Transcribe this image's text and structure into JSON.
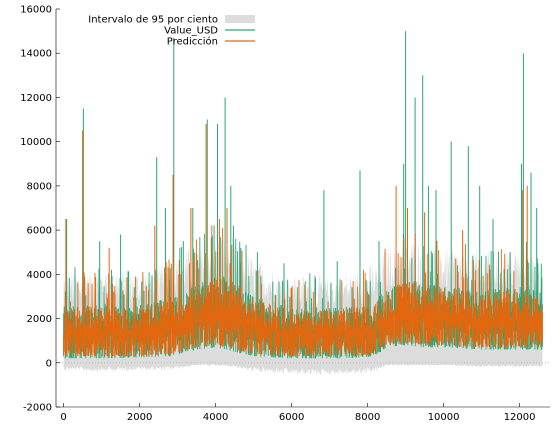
{
  "chart_data": {
    "type": "line",
    "title": "",
    "xlabel": "",
    "ylabel": "",
    "xlim": [
      -200,
      12800
    ],
    "ylim": [
      -2000,
      16000
    ],
    "x_ticks": [
      0,
      2000,
      4000,
      6000,
      8000,
      10000,
      12000
    ],
    "x_tick_labels": [
      "0",
      "2000",
      "4000",
      "6000",
      "8000",
      "10000",
      "12000"
    ],
    "y_ticks": [
      -2000,
      0,
      2000,
      4000,
      6000,
      8000,
      10000,
      12000,
      14000,
      16000
    ],
    "y_tick_labels": [
      "-2000",
      "0",
      "2000",
      "4000",
      "6000",
      "8000",
      "10000",
      "12000",
      "14000",
      "16000"
    ],
    "zero_line": true,
    "legend_position": "top-left",
    "n_points": 12600,
    "series": [
      {
        "name": "Intervalo de 95 por ciento",
        "kind": "band",
        "color": "#dcdcdc",
        "level_profile": {
          "x": [
            0,
            1000,
            2000,
            2800,
            3500,
            4000,
            4500,
            5000,
            6000,
            7000,
            7500,
            8200,
            8500,
            9000,
            9500,
            10000,
            11000,
            12000,
            12600
          ],
          "lower": [
            -250,
            -300,
            -250,
            -250,
            -100,
            -100,
            -150,
            -300,
            -400,
            -400,
            -400,
            -300,
            -100,
            -100,
            -100,
            -100,
            -150,
            -150,
            -150
          ],
          "upper": [
            3400,
            3500,
            3400,
            3800,
            4400,
            4800,
            4600,
            3800,
            3200,
            3200,
            3300,
            3600,
            4300,
            4600,
            4400,
            4300,
            4100,
            4300,
            4000
          ]
        }
      },
      {
        "name": "Value_USD",
        "kind": "line",
        "color": "#2aa676",
        "level_profile": {
          "x": [
            0,
            1000,
            2000,
            2800,
            3500,
            4000,
            4500,
            5000,
            6000,
            7000,
            7500,
            8200,
            8500,
            9000,
            9500,
            10000,
            11000,
            12000,
            12600
          ],
          "low": [
            200,
            200,
            250,
            300,
            600,
            700,
            500,
            300,
            200,
            200,
            200,
            300,
            700,
            800,
            700,
            700,
            600,
            600,
            600
          ],
          "high": [
            2600,
            2700,
            2600,
            3000,
            3500,
            4000,
            3800,
            3000,
            2500,
            2500,
            2600,
            2800,
            3400,
            3800,
            3600,
            3500,
            3300,
            3500,
            3200
          ]
        },
        "peaks": [
          {
            "x": 80,
            "y": 6500
          },
          {
            "x": 520,
            "y": 11500
          },
          {
            "x": 950,
            "y": 5500
          },
          {
            "x": 1500,
            "y": 5800
          },
          {
            "x": 2450,
            "y": 9300
          },
          {
            "x": 2680,
            "y": 7000
          },
          {
            "x": 2900,
            "y": 14700
          },
          {
            "x": 3150,
            "y": 5500
          },
          {
            "x": 3400,
            "y": 7000
          },
          {
            "x": 3780,
            "y": 11000
          },
          {
            "x": 4050,
            "y": 10800
          },
          {
            "x": 4250,
            "y": 12000
          },
          {
            "x": 4400,
            "y": 8000
          },
          {
            "x": 5100,
            "y": 5000
          },
          {
            "x": 5800,
            "y": 4500
          },
          {
            "x": 6850,
            "y": 7800
          },
          {
            "x": 7200,
            "y": 4600
          },
          {
            "x": 7800,
            "y": 8700
          },
          {
            "x": 8300,
            "y": 5500
          },
          {
            "x": 8950,
            "y": 9000
          },
          {
            "x": 9000,
            "y": 15000
          },
          {
            "x": 9250,
            "y": 12000
          },
          {
            "x": 9450,
            "y": 13000
          },
          {
            "x": 9600,
            "y": 8000
          },
          {
            "x": 9800,
            "y": 7800
          },
          {
            "x": 10200,
            "y": 10000
          },
          {
            "x": 10650,
            "y": 9800
          },
          {
            "x": 10950,
            "y": 8000
          },
          {
            "x": 11300,
            "y": 6500
          },
          {
            "x": 11750,
            "y": 5000
          },
          {
            "x": 12050,
            "y": 9000
          },
          {
            "x": 12100,
            "y": 14000
          },
          {
            "x": 12300,
            "y": 8600
          },
          {
            "x": 12450,
            "y": 7000
          }
        ]
      },
      {
        "name": "Predicción",
        "kind": "line",
        "color": "#e3670e",
        "level_profile": {
          "x": [
            0,
            1000,
            2000,
            2800,
            3500,
            4000,
            4500,
            5000,
            6000,
            7000,
            7500,
            8200,
            8500,
            9000,
            9500,
            10000,
            11000,
            12000,
            12600
          ],
          "low": [
            300,
            300,
            300,
            400,
            700,
            800,
            600,
            400,
            300,
            300,
            300,
            400,
            800,
            900,
            800,
            800,
            700,
            700,
            700
          ],
          "high": [
            2500,
            2600,
            2500,
            2900,
            3400,
            3900,
            3700,
            2900,
            2400,
            2400,
            2500,
            2700,
            3300,
            3700,
            3500,
            3400,
            3200,
            3400,
            3100
          ]
        },
        "peaks": [
          {
            "x": 60,
            "y": 6500
          },
          {
            "x": 500,
            "y": 10500
          },
          {
            "x": 1200,
            "y": 5200
          },
          {
            "x": 2400,
            "y": 6200
          },
          {
            "x": 2880,
            "y": 8500
          },
          {
            "x": 3350,
            "y": 7000
          },
          {
            "x": 3750,
            "y": 10800
          },
          {
            "x": 4100,
            "y": 6500
          },
          {
            "x": 4300,
            "y": 7000
          },
          {
            "x": 8750,
            "y": 8000
          },
          {
            "x": 9050,
            "y": 7000
          },
          {
            "x": 9500,
            "y": 6800
          },
          {
            "x": 10500,
            "y": 6000
          },
          {
            "x": 12080,
            "y": 7800
          },
          {
            "x": 12200,
            "y": 8000
          }
        ]
      }
    ]
  }
}
